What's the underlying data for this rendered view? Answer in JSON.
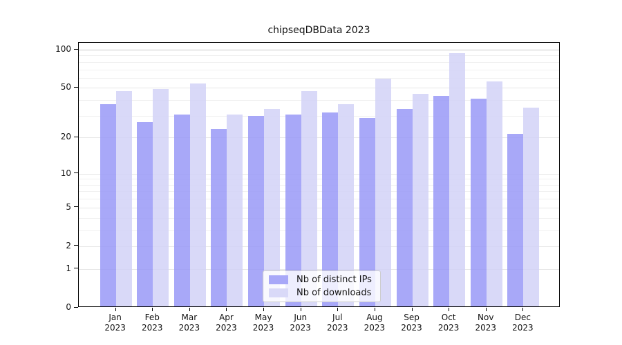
{
  "figure": {
    "title": "chipseqDBData 2023"
  },
  "chart_data": {
    "type": "bar",
    "title": "chipseqDBData 2023",
    "categories": [
      "Jan",
      "Feb",
      "Mar",
      "Apr",
      "May",
      "Jun",
      "Jul",
      "Aug",
      "Sep",
      "Oct",
      "Nov",
      "Dec"
    ],
    "year_label": "2023",
    "series": [
      {
        "name": "Nb of distinct IPs",
        "color": "#a8a8f8",
        "fill": "rgba(149,149,246,0.82)",
        "values": [
          36,
          26,
          30,
          23,
          29,
          30,
          31,
          28,
          33,
          42,
          40,
          21
        ]
      },
      {
        "name": "Nb of downloads",
        "color": "#d9d9f8",
        "fill": "rgba(209,209,246,0.82)",
        "values": [
          46,
          48,
          53,
          30,
          33,
          46,
          36,
          58,
          44,
          92,
          55,
          34
        ]
      }
    ],
    "xlabel": "",
    "ylabel": "",
    "yscale": "log1p",
    "ylim": [
      0,
      113
    ],
    "y_ticks": [
      0,
      1,
      2,
      5,
      10,
      20,
      50,
      100
    ],
    "y_gridlines": [
      1,
      2,
      3,
      4,
      5,
      6,
      7,
      8,
      9,
      10,
      20,
      30,
      40,
      50,
      60,
      70,
      80,
      90,
      100
    ],
    "grid": true,
    "legend_position": "lower center"
  },
  "colors": {
    "grid_major_top": "#c9c9c9",
    "grid_labeled": "#e6e6e6",
    "grid_minor": "#f0f0f0",
    "axis": "#000000"
  }
}
